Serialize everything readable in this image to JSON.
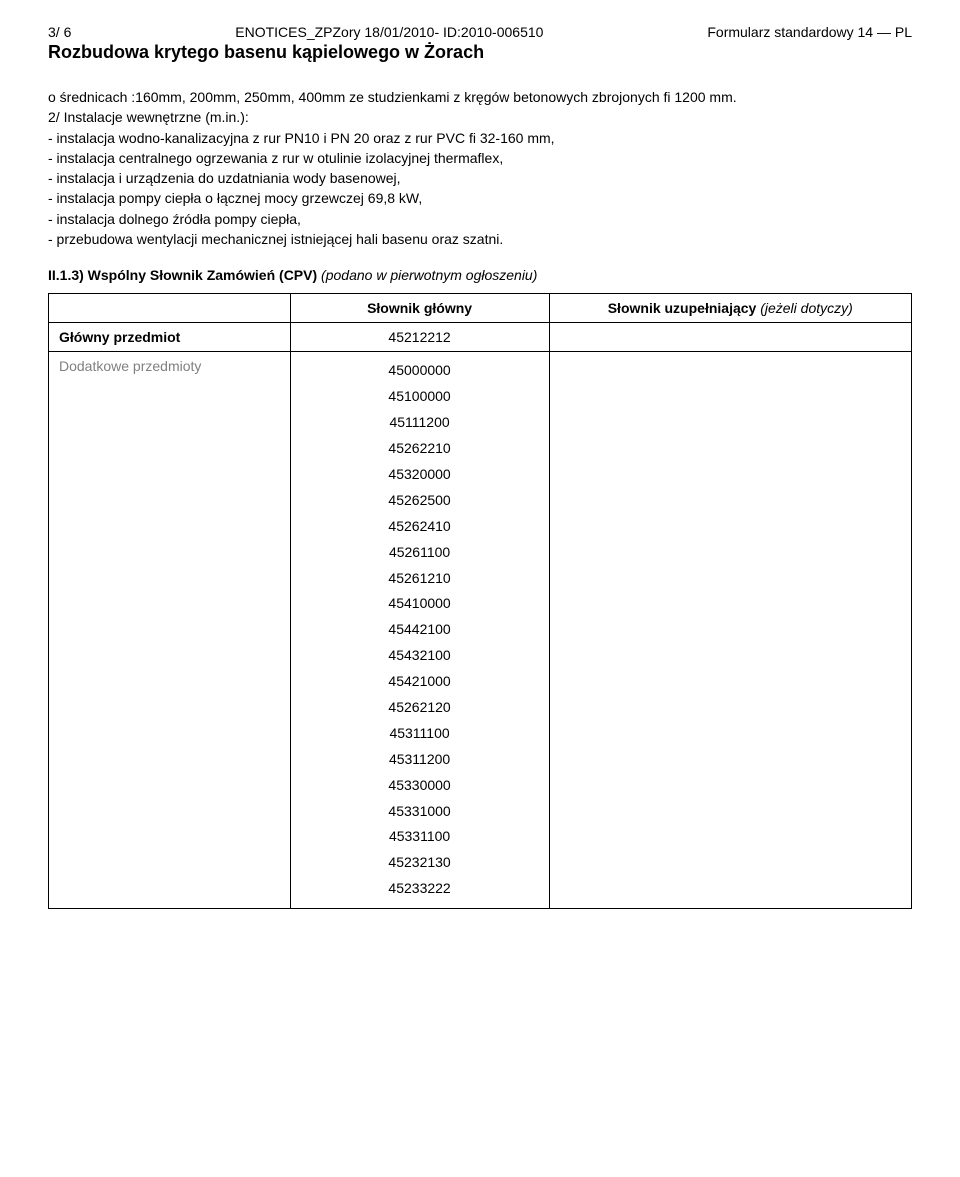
{
  "header": {
    "page_num": "3/ 6",
    "center": "ENOTICES_ZPZory 18/01/2010- ID:2010-006510",
    "right": "Formularz standardowy 14 — PL"
  },
  "title": "Rozbudowa krytego basenu kąpielowego w Żorach",
  "body_lines": [
    "o średnicach :160mm, 200mm, 250mm, 400mm ze studzienkami z kręgów betonowych zbrojonych fi 1200 mm.",
    "2/ Instalacje wewnętrzne (m.in.):",
    "- instalacja wodno-kanalizacyjna z rur PN10 i PN 20 oraz z rur PVC fi 32-160 mm,",
    "- instalacja centralnego ogrzewania z rur w otulinie izolacyjnej thermaflex,",
    "- instalacja i urządzenia do uzdatniania wody basenowej,",
    "- instalacja pompy ciepła o łącznej mocy grzewczej 69,8 kW,",
    "- instalacja dolnego źródła pompy ciepła,",
    "- przebudowa wentylacji mechanicznej istniejącej hali basenu oraz szatni."
  ],
  "section": {
    "prefix": "II.1.3) Wspólny Słownik Zamówień (CPV)",
    "suffix_italic": " (podano w pierwotnym ogłoszeniu)"
  },
  "table": {
    "col_main": "Słownik główny",
    "col_supp_prefix": "Słownik uzupełniający",
    "col_supp_suffix": " (jeżeli dotyczy)",
    "row_main_label": "Główny przedmiot",
    "row_main_code": "45212212",
    "row_add_label": "Dodatkowe przedmioty",
    "add_codes": [
      "45000000",
      "45100000",
      "45111200",
      "45262210",
      "45320000",
      "45262500",
      "45262410",
      "45261100",
      "45261210",
      "45410000",
      "45442100",
      "45432100",
      "45421000",
      "45262120",
      "45311100",
      "45311200",
      "45330000",
      "45331000",
      "45331100",
      "45232130",
      "45233222"
    ]
  },
  "colors": {
    "text": "#000000",
    "grey": "#808080",
    "background": "#ffffff",
    "border": "#000000"
  }
}
